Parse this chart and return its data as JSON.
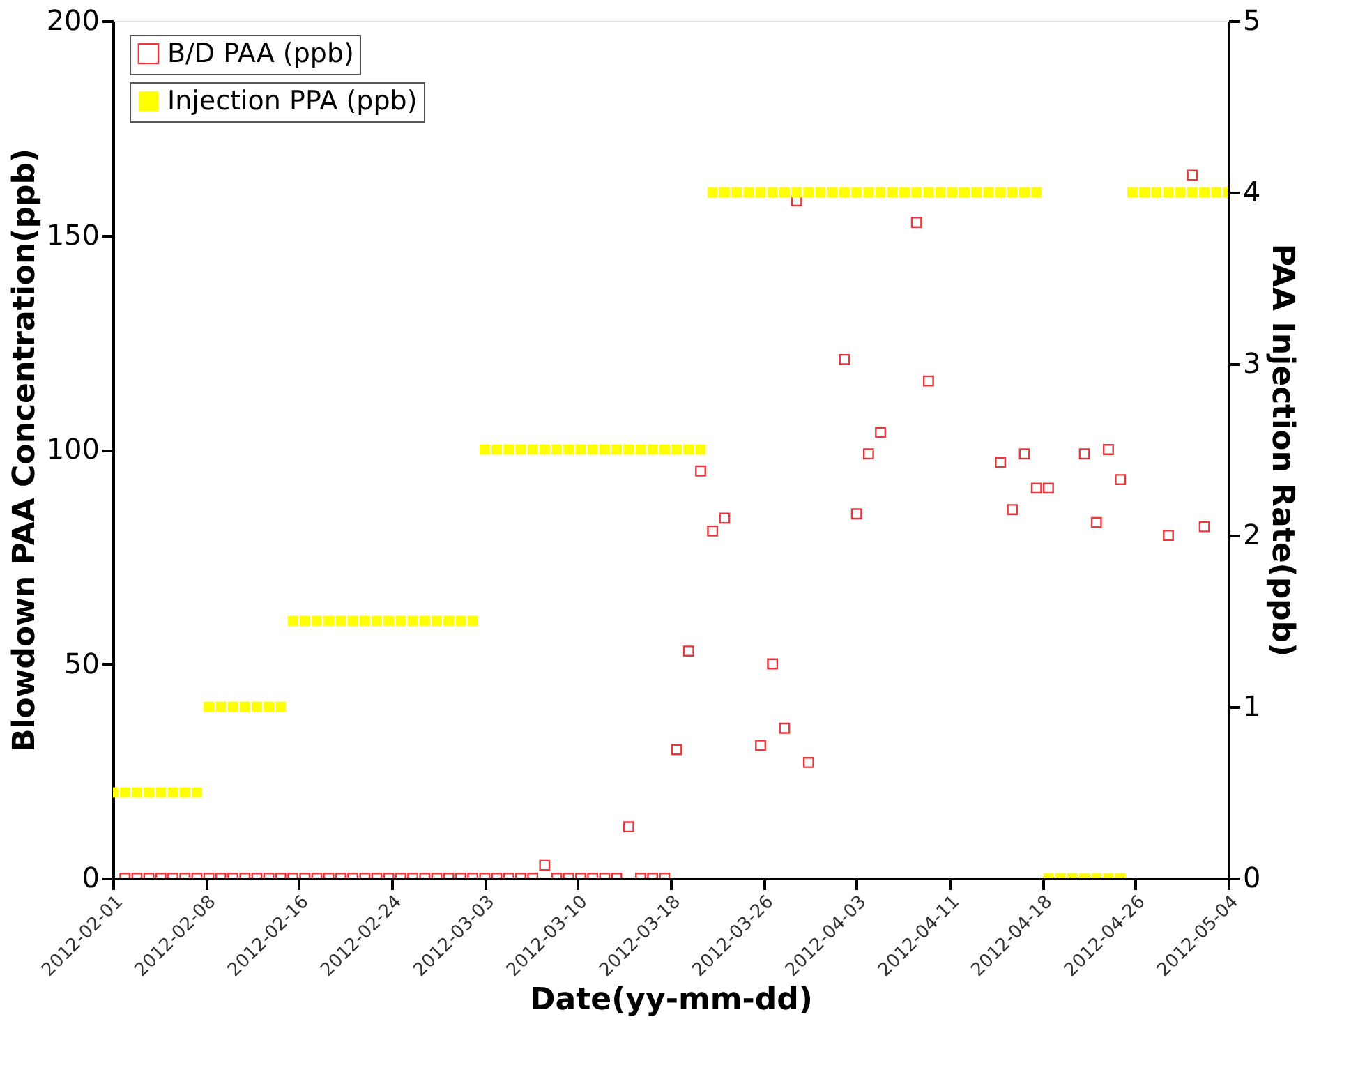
{
  "chart_data": {
    "type": "scatter",
    "xlabel": "Date(yy-mm-dd)",
    "ylabel": "Blowdown PAA Concentration(ppb)",
    "y2label": "PAA Injection Rate(ppb)",
    "xlim": [
      "2012-02-01",
      "2012-05-04"
    ],
    "xticks": [
      {
        "value": "2012-02-01",
        "label": "2012-02-01"
      },
      {
        "value": "2012-02-08T18:00",
        "label": "2012-02-08"
      },
      {
        "value": "2012-02-16T12:00",
        "label": "2012-02-16"
      },
      {
        "value": "2012-02-24T06:00",
        "label": "2012-02-24"
      },
      {
        "value": "2012-03-03",
        "label": "2012-03-03"
      },
      {
        "value": "2012-03-10T18:00",
        "label": "2012-03-10"
      },
      {
        "value": "2012-03-18T12:00",
        "label": "2012-03-18"
      },
      {
        "value": "2012-03-26T06:00",
        "label": "2012-03-26"
      },
      {
        "value": "2012-04-03",
        "label": "2012-04-03"
      },
      {
        "value": "2012-04-10T18:00",
        "label": "2012-04-11"
      },
      {
        "value": "2012-04-18T12:00",
        "label": "2012-04-18"
      },
      {
        "value": "2012-04-26T06:00",
        "label": "2012-04-26"
      },
      {
        "value": "2012-05-04",
        "label": "2012-05-04"
      }
    ],
    "ylim": [
      0,
      200
    ],
    "yticks": [
      0,
      50,
      100,
      150,
      200
    ],
    "y2lim": [
      0,
      5
    ],
    "y2ticks": [
      0,
      1,
      2,
      3,
      4,
      5
    ],
    "grid": false,
    "legend": "top left",
    "marker": "square",
    "series": [
      {
        "name": "B/D PAA (ppb)",
        "color": "#e8383d",
        "x": [
          "2012-02-02",
          "2012-02-03",
          "2012-02-04",
          "2012-02-05",
          "2012-02-06",
          "2012-02-07",
          "2012-02-08",
          "2012-02-09",
          "2012-02-10",
          "2012-02-11",
          "2012-02-12",
          "2012-02-13",
          "2012-02-14",
          "2012-02-15",
          "2012-02-16",
          "2012-02-17",
          "2012-02-18",
          "2012-02-19",
          "2012-02-20",
          "2012-02-21",
          "2012-02-22",
          "2012-02-23",
          "2012-02-24",
          "2012-02-25",
          "2012-02-26",
          "2012-02-27",
          "2012-02-28",
          "2012-02-29",
          "2012-03-01",
          "2012-03-02",
          "2012-03-03",
          "2012-03-04",
          "2012-03-05",
          "2012-03-06",
          "2012-03-07",
          "2012-03-08",
          "2012-03-09",
          "2012-03-10",
          "2012-03-11",
          "2012-03-12",
          "2012-03-13",
          "2012-03-14",
          "2012-03-15",
          "2012-03-16",
          "2012-03-17",
          "2012-03-18",
          "2012-03-19",
          "2012-03-20",
          "2012-03-21",
          "2012-03-22",
          "2012-03-23",
          "2012-03-26",
          "2012-03-27",
          "2012-03-28",
          "2012-03-29",
          "2012-03-30",
          "2012-04-02",
          "2012-04-03",
          "2012-04-04",
          "2012-04-05",
          "2012-04-08",
          "2012-04-09",
          "2012-04-15",
          "2012-04-16",
          "2012-04-17",
          "2012-04-18",
          "2012-04-19",
          "2012-04-22",
          "2012-04-23",
          "2012-04-24",
          "2012-04-25",
          "2012-04-29",
          "2012-05-01",
          "2012-05-02"
        ],
        "values": [
          0,
          0,
          0,
          0,
          0,
          0,
          0,
          0,
          0,
          0,
          0,
          0,
          0,
          0,
          0,
          0,
          0,
          0,
          0,
          0,
          0,
          0,
          0,
          0,
          0,
          0,
          0,
          0,
          0,
          0,
          0,
          0,
          0,
          0,
          0,
          3,
          0,
          0,
          0,
          0,
          0,
          0,
          12,
          0,
          0,
          0,
          30,
          53,
          95,
          81,
          84,
          31,
          50,
          35,
          158,
          27,
          121,
          85,
          99,
          104,
          153,
          116,
          97,
          86,
          99,
          91,
          91,
          99,
          83,
          100,
          93,
          80,
          164,
          82
        ]
      },
      {
        "name": "Injection PPA (ppb)",
        "color": "#ffff00",
        "axis": "y2",
        "x": [
          "2012-02-01",
          "2012-02-02",
          "2012-02-03",
          "2012-02-04",
          "2012-02-05",
          "2012-02-06",
          "2012-02-07",
          "2012-02-08",
          "2012-02-09",
          "2012-02-10",
          "2012-02-11",
          "2012-02-12",
          "2012-02-13",
          "2012-02-14",
          "2012-02-15",
          "2012-02-16",
          "2012-02-17",
          "2012-02-18",
          "2012-02-19",
          "2012-02-20",
          "2012-02-21",
          "2012-02-22",
          "2012-02-23",
          "2012-02-24",
          "2012-02-25",
          "2012-02-26",
          "2012-02-27",
          "2012-02-28",
          "2012-02-29",
          "2012-03-01",
          "2012-03-02",
          "2012-03-03",
          "2012-03-04",
          "2012-03-05",
          "2012-03-06",
          "2012-03-07",
          "2012-03-08",
          "2012-03-09",
          "2012-03-10",
          "2012-03-11",
          "2012-03-12",
          "2012-03-13",
          "2012-03-14",
          "2012-03-15",
          "2012-03-16",
          "2012-03-17",
          "2012-03-18",
          "2012-03-19",
          "2012-03-20",
          "2012-03-21",
          "2012-03-22",
          "2012-03-23",
          "2012-03-24",
          "2012-03-25",
          "2012-03-26",
          "2012-03-27",
          "2012-03-28",
          "2012-03-29",
          "2012-03-30",
          "2012-03-31",
          "2012-04-01",
          "2012-04-02",
          "2012-04-03",
          "2012-04-04",
          "2012-04-05",
          "2012-04-06",
          "2012-04-07",
          "2012-04-08",
          "2012-04-09",
          "2012-04-10",
          "2012-04-11",
          "2012-04-12",
          "2012-04-13",
          "2012-04-14",
          "2012-04-15",
          "2012-04-16",
          "2012-04-17",
          "2012-04-18",
          "2012-04-19",
          "2012-04-20",
          "2012-04-21",
          "2012-04-22",
          "2012-04-23",
          "2012-04-24",
          "2012-04-25",
          "2012-04-26",
          "2012-04-27",
          "2012-04-28",
          "2012-04-29",
          "2012-04-30",
          "2012-05-01",
          "2012-05-02",
          "2012-05-03",
          "2012-05-04"
        ],
        "values": [
          0.5,
          0.5,
          0.5,
          0.5,
          0.5,
          0.5,
          0.5,
          0.5,
          1,
          1,
          1,
          1,
          1,
          1,
          1,
          1.5,
          1.5,
          1.5,
          1.5,
          1.5,
          1.5,
          1.5,
          1.5,
          1.5,
          1.5,
          1.5,
          1.5,
          1.5,
          1.5,
          1.5,
          1.5,
          2.5,
          2.5,
          2.5,
          2.5,
          2.5,
          2.5,
          2.5,
          2.5,
          2.5,
          2.5,
          2.5,
          2.5,
          2.5,
          2.5,
          2.5,
          2.5,
          2.5,
          2.5,
          2.5,
          4,
          4,
          4,
          4,
          4,
          4,
          4,
          4,
          4,
          4,
          4,
          4,
          4,
          4,
          4,
          4,
          4,
          4,
          4,
          4,
          4,
          4,
          4,
          4,
          4,
          4,
          4,
          4,
          0,
          0,
          0,
          0,
          0,
          0,
          0,
          4,
          4,
          4,
          4,
          4,
          4,
          4,
          4,
          4
        ]
      }
    ]
  }
}
